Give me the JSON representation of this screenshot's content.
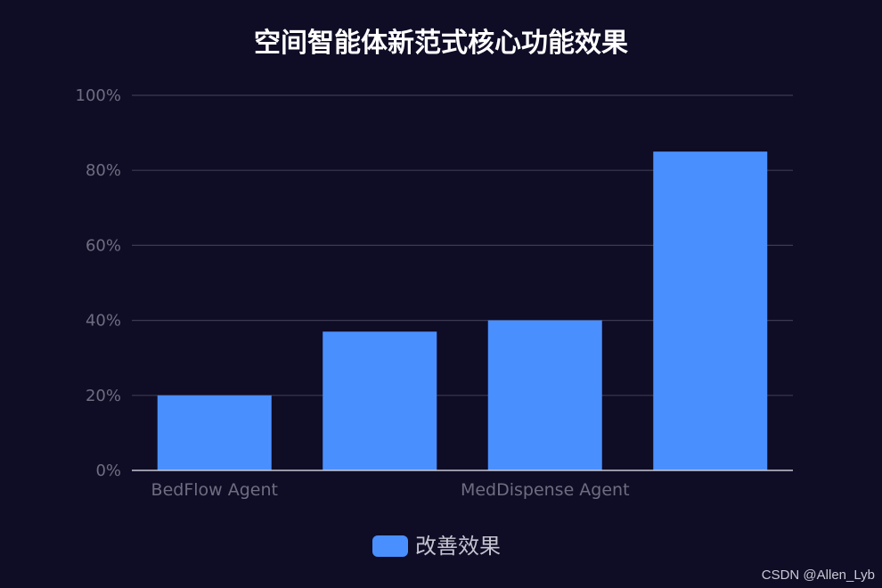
{
  "chart_data": {
    "type": "bar",
    "title": "空间智能体新范式核心功能效果",
    "categories": [
      "BedFlow Agent",
      "",
      "MedDispense Agent",
      ""
    ],
    "series": [
      {
        "name": "改善效果",
        "values": [
          20,
          37,
          40,
          85
        ]
      }
    ],
    "ylim": [
      0,
      100
    ],
    "y_ticks": [
      0,
      20,
      40,
      60,
      80,
      100
    ],
    "y_tick_labels": [
      "0%",
      "20%",
      "40%",
      "60%",
      "80%",
      "100%"
    ],
    "xlabel": "",
    "ylabel": "",
    "grid": true,
    "legend_position": "bottom-center"
  },
  "watermark": "CSDN @Allen_Lyb",
  "colors": {
    "background": "#0f0c26",
    "bar": "#4a8ffe",
    "grid": "#3c3a52",
    "axis_line": "#c7c6d2",
    "tick_label": "#6e6d80",
    "title": "#ffffff",
    "legend_text": "#c5c4d0"
  }
}
